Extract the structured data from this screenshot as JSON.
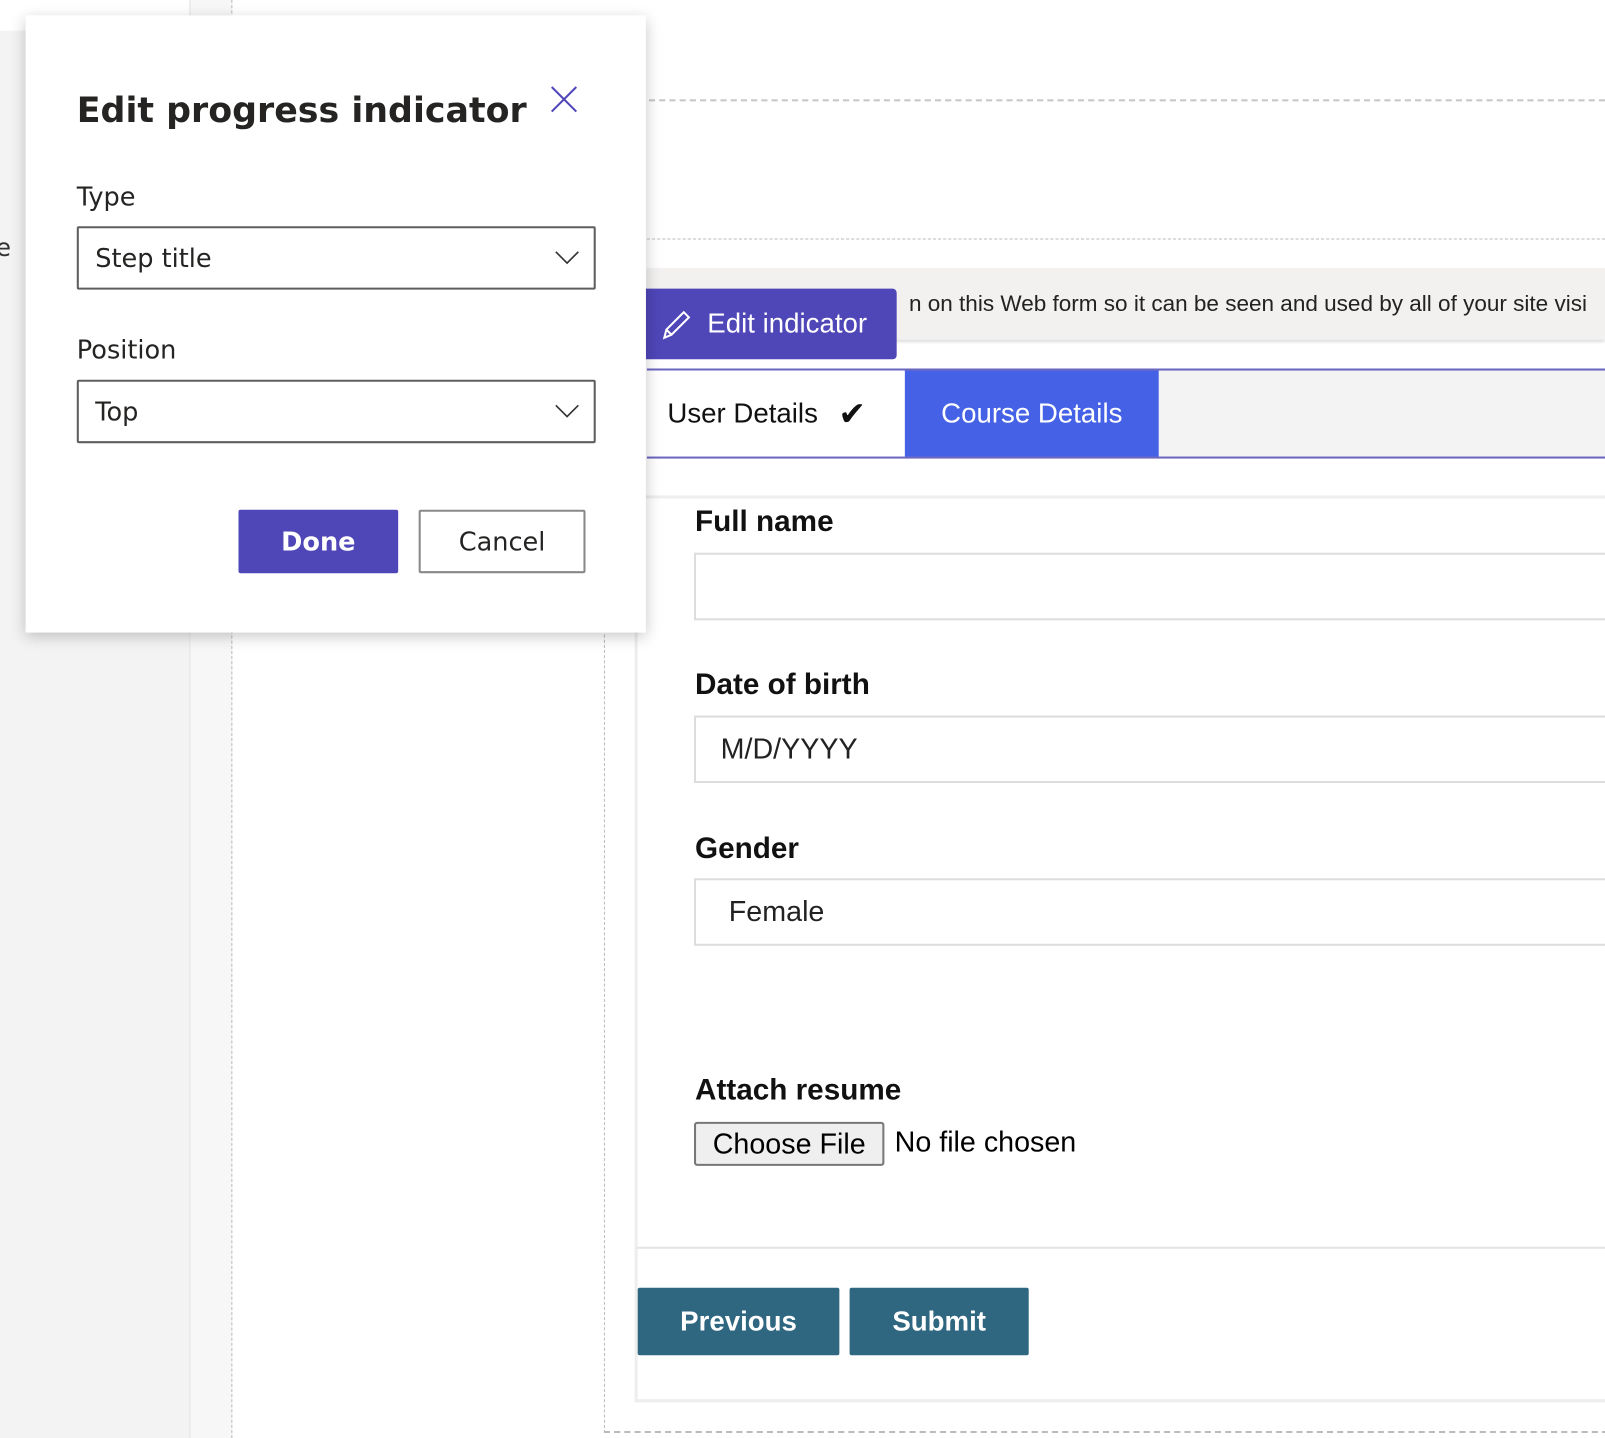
{
  "dialog": {
    "title": "Edit progress indicator",
    "type_label": "Type",
    "type_value": "Step title",
    "position_label": "Position",
    "position_value": "Top",
    "done_label": "Done",
    "cancel_label": "Cancel"
  },
  "background": {
    "left_fragment": "e",
    "banner_text": "n on this Web form so it can be seen and used by all of your site visi",
    "edit_indicator_label": "Edit indicator",
    "tabs": [
      {
        "label": "User Details",
        "completed": true
      },
      {
        "label": "Course Details",
        "active": true
      }
    ],
    "form": {
      "full_name_label": "Full name",
      "full_name_value": "",
      "dob_label": "Date of birth",
      "dob_placeholder": "M/D/YYYY",
      "gender_label": "Gender",
      "gender_value": "Female",
      "resume_label": "Attach resume",
      "choose_file_label": "Choose File",
      "no_file_text": "No file chosen",
      "previous_label": "Previous",
      "submit_label": "Submit"
    }
  },
  "colors": {
    "accent": "#4f46b8",
    "active_tab": "#4562e6",
    "nav_button": "#2f6680"
  }
}
